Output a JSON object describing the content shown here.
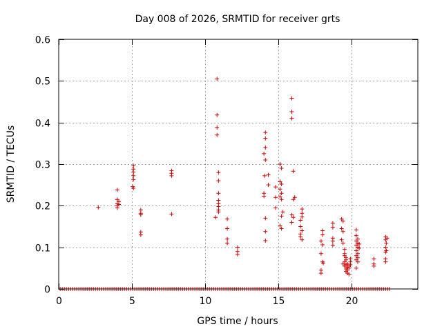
{
  "chart_data": {
    "type": "scatter",
    "title": "Day 008 of 2026, SRMTID for receiver grts",
    "xlabel": "GPS time / hours",
    "ylabel": "SRMTID / TECUs",
    "xlim": [
      0,
      24.5
    ],
    "ylim": [
      0,
      0.6
    ],
    "x_ticks": [
      0,
      5,
      10,
      15,
      20
    ],
    "x_tick_labels": [
      "0",
      "5",
      "10",
      "15",
      "20"
    ],
    "y_ticks": [
      0,
      0.1,
      0.2,
      0.3,
      0.4,
      0.5,
      0.6
    ],
    "y_tick_labels": [
      "0",
      "0.1",
      "0.2",
      "0.3",
      "0.4",
      "0.5",
      "0.6"
    ],
    "grid": true,
    "marker": "plus",
    "color": "#cc0000",
    "baseline_range": [
      0.1,
      22.7
    ],
    "series": [
      {
        "name": "SRMTID",
        "points": [
          [
            2.7,
            0.196
          ],
          [
            4.0,
            0.238
          ],
          [
            4.0,
            0.215
          ],
          [
            4.0,
            0.205
          ],
          [
            4.0,
            0.2
          ],
          [
            4.0,
            0.195
          ],
          [
            4.1,
            0.21
          ],
          [
            4.1,
            0.203
          ],
          [
            5.1,
            0.296
          ],
          [
            5.1,
            0.288
          ],
          [
            5.1,
            0.281
          ],
          [
            5.1,
            0.272
          ],
          [
            5.1,
            0.263
          ],
          [
            5.05,
            0.246
          ],
          [
            5.1,
            0.242
          ],
          [
            5.6,
            0.19
          ],
          [
            5.6,
            0.182
          ],
          [
            5.6,
            0.178
          ],
          [
            5.6,
            0.137
          ],
          [
            5.6,
            0.13
          ],
          [
            7.7,
            0.284
          ],
          [
            7.7,
            0.278
          ],
          [
            7.7,
            0.272
          ],
          [
            7.7,
            0.18
          ],
          [
            10.8,
            0.505
          ],
          [
            10.8,
            0.418
          ],
          [
            10.8,
            0.388
          ],
          [
            10.8,
            0.37
          ],
          [
            10.7,
            0.172
          ],
          [
            10.9,
            0.28
          ],
          [
            10.9,
            0.26
          ],
          [
            10.9,
            0.23
          ],
          [
            10.9,
            0.213
          ],
          [
            10.9,
            0.205
          ],
          [
            10.9,
            0.198
          ],
          [
            10.9,
            0.19
          ],
          [
            10.9,
            0.185
          ],
          [
            11.5,
            0.168
          ],
          [
            11.5,
            0.145
          ],
          [
            11.5,
            0.12
          ],
          [
            11.5,
            0.11
          ],
          [
            12.2,
            0.1
          ],
          [
            12.2,
            0.09
          ],
          [
            12.2,
            0.083
          ],
          [
            14.1,
            0.376
          ],
          [
            14.1,
            0.362
          ],
          [
            14.1,
            0.34
          ],
          [
            14.0,
            0.325
          ],
          [
            14.1,
            0.31
          ],
          [
            14.05,
            0.272
          ],
          [
            14.0,
            0.23
          ],
          [
            14.0,
            0.223
          ],
          [
            14.1,
            0.17
          ],
          [
            14.1,
            0.138
          ],
          [
            14.1,
            0.116
          ],
          [
            14.3,
            0.274
          ],
          [
            14.3,
            0.25
          ],
          [
            14.8,
            0.245
          ],
          [
            14.8,
            0.22
          ],
          [
            14.8,
            0.195
          ],
          [
            15.1,
            0.3
          ],
          [
            15.2,
            0.29
          ],
          [
            15.1,
            0.258
          ],
          [
            15.2,
            0.252
          ],
          [
            15.1,
            0.24
          ],
          [
            15.2,
            0.23
          ],
          [
            15.1,
            0.222
          ],
          [
            15.2,
            0.215
          ],
          [
            15.3,
            0.185
          ],
          [
            15.2,
            0.175
          ],
          [
            15.1,
            0.152
          ],
          [
            15.2,
            0.145
          ],
          [
            15.9,
            0.458
          ],
          [
            15.9,
            0.426
          ],
          [
            15.9,
            0.41
          ],
          [
            16.0,
            0.283
          ],
          [
            16.1,
            0.22
          ],
          [
            16.0,
            0.215
          ],
          [
            15.9,
            0.178
          ],
          [
            16.0,
            0.172
          ],
          [
            15.9,
            0.16
          ],
          [
            16.6,
            0.192
          ],
          [
            16.6,
            0.182
          ],
          [
            16.6,
            0.173
          ],
          [
            16.5,
            0.165
          ],
          [
            16.5,
            0.15
          ],
          [
            16.6,
            0.14
          ],
          [
            16.5,
            0.132
          ],
          [
            16.5,
            0.125
          ],
          [
            16.6,
            0.118
          ],
          [
            18.0,
            0.14
          ],
          [
            18.0,
            0.13
          ],
          [
            17.9,
            0.115
          ],
          [
            18.0,
            0.106
          ],
          [
            17.9,
            0.085
          ],
          [
            18.0,
            0.065
          ],
          [
            18.05,
            0.062
          ],
          [
            17.9,
            0.045
          ],
          [
            17.9,
            0.038
          ],
          [
            18.7,
            0.158
          ],
          [
            18.7,
            0.148
          ],
          [
            18.7,
            0.122
          ],
          [
            18.7,
            0.115
          ],
          [
            18.7,
            0.105
          ],
          [
            19.3,
            0.168
          ],
          [
            19.4,
            0.163
          ],
          [
            19.3,
            0.145
          ],
          [
            19.4,
            0.138
          ],
          [
            19.3,
            0.118
          ],
          [
            19.4,
            0.11
          ],
          [
            19.5,
            0.095
          ],
          [
            19.5,
            0.085
          ],
          [
            19.5,
            0.08
          ],
          [
            19.6,
            0.075
          ],
          [
            19.6,
            0.07
          ],
          [
            19.5,
            0.065
          ],
          [
            19.4,
            0.06
          ],
          [
            19.6,
            0.058
          ],
          [
            19.5,
            0.055
          ],
          [
            19.7,
            0.052
          ],
          [
            19.6,
            0.048
          ],
          [
            19.7,
            0.045
          ],
          [
            19.6,
            0.042
          ],
          [
            19.7,
            0.038
          ],
          [
            19.8,
            0.035
          ],
          [
            19.7,
            0.06
          ],
          [
            19.8,
            0.055
          ],
          [
            19.8,
            0.05
          ],
          [
            19.9,
            0.065
          ],
          [
            19.9,
            0.058
          ],
          [
            19.9,
            0.072
          ],
          [
            20.3,
            0.142
          ],
          [
            20.3,
            0.128
          ],
          [
            20.4,
            0.12
          ],
          [
            20.3,
            0.115
          ],
          [
            20.4,
            0.11
          ],
          [
            20.5,
            0.108
          ],
          [
            20.3,
            0.105
          ],
          [
            20.4,
            0.1
          ],
          [
            20.5,
            0.098
          ],
          [
            20.3,
            0.092
          ],
          [
            20.4,
            0.085
          ],
          [
            20.3,
            0.08
          ],
          [
            20.4,
            0.075
          ],
          [
            20.3,
            0.07
          ],
          [
            20.4,
            0.065
          ],
          [
            20.3,
            0.05
          ],
          [
            21.5,
            0.072
          ],
          [
            21.5,
            0.06
          ],
          [
            21.5,
            0.055
          ],
          [
            22.3,
            0.125
          ],
          [
            22.4,
            0.122
          ],
          [
            22.3,
            0.118
          ],
          [
            22.35,
            0.11
          ],
          [
            22.3,
            0.1
          ],
          [
            22.35,
            0.092
          ],
          [
            22.3,
            0.088
          ],
          [
            22.3,
            0.072
          ],
          [
            22.3,
            0.065
          ]
        ]
      }
    ]
  }
}
